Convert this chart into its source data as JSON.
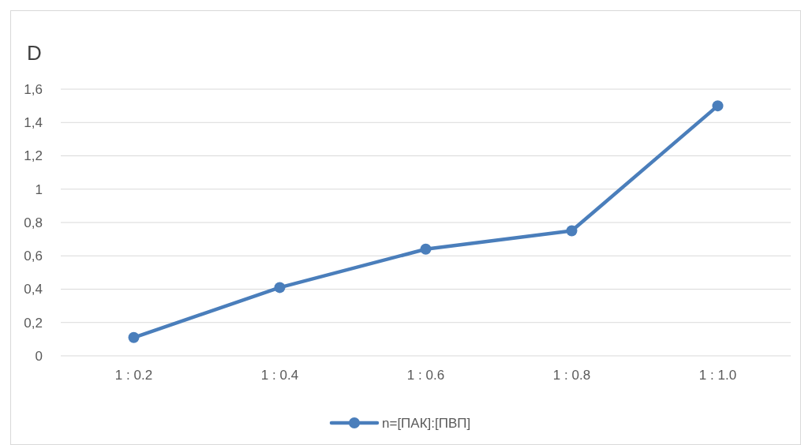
{
  "chart_data": {
    "type": "line",
    "ylabel": "D",
    "categories": [
      "1 : 0.2",
      "1 : 0.4",
      "1 : 0.6",
      "1 : 0.8",
      "1 : 1.0"
    ],
    "series": [
      {
        "name": "n=[ПАК]:[ПВП]",
        "color": "#4a7ebb",
        "values": [
          0.11,
          0.41,
          0.64,
          0.75,
          1.5
        ]
      }
    ],
    "ylim": [
      0,
      1.6
    ],
    "yticks": [
      0,
      {
        "value": 0.2,
        "label": "0,2"
      },
      {
        "value": 0.4,
        "label": "0,4"
      },
      {
        "value": 0.6,
        "label": "0,6"
      },
      {
        "value": 0.8,
        "label": "0,8"
      },
      1,
      {
        "value": 1.2,
        "label": "1,2"
      },
      {
        "value": 1.4,
        "label": "1,4"
      },
      {
        "value": 1.6,
        "label": "1,6"
      }
    ],
    "grid": "y",
    "legend": "bottom",
    "marker": "circle",
    "line_style": "solid"
  }
}
